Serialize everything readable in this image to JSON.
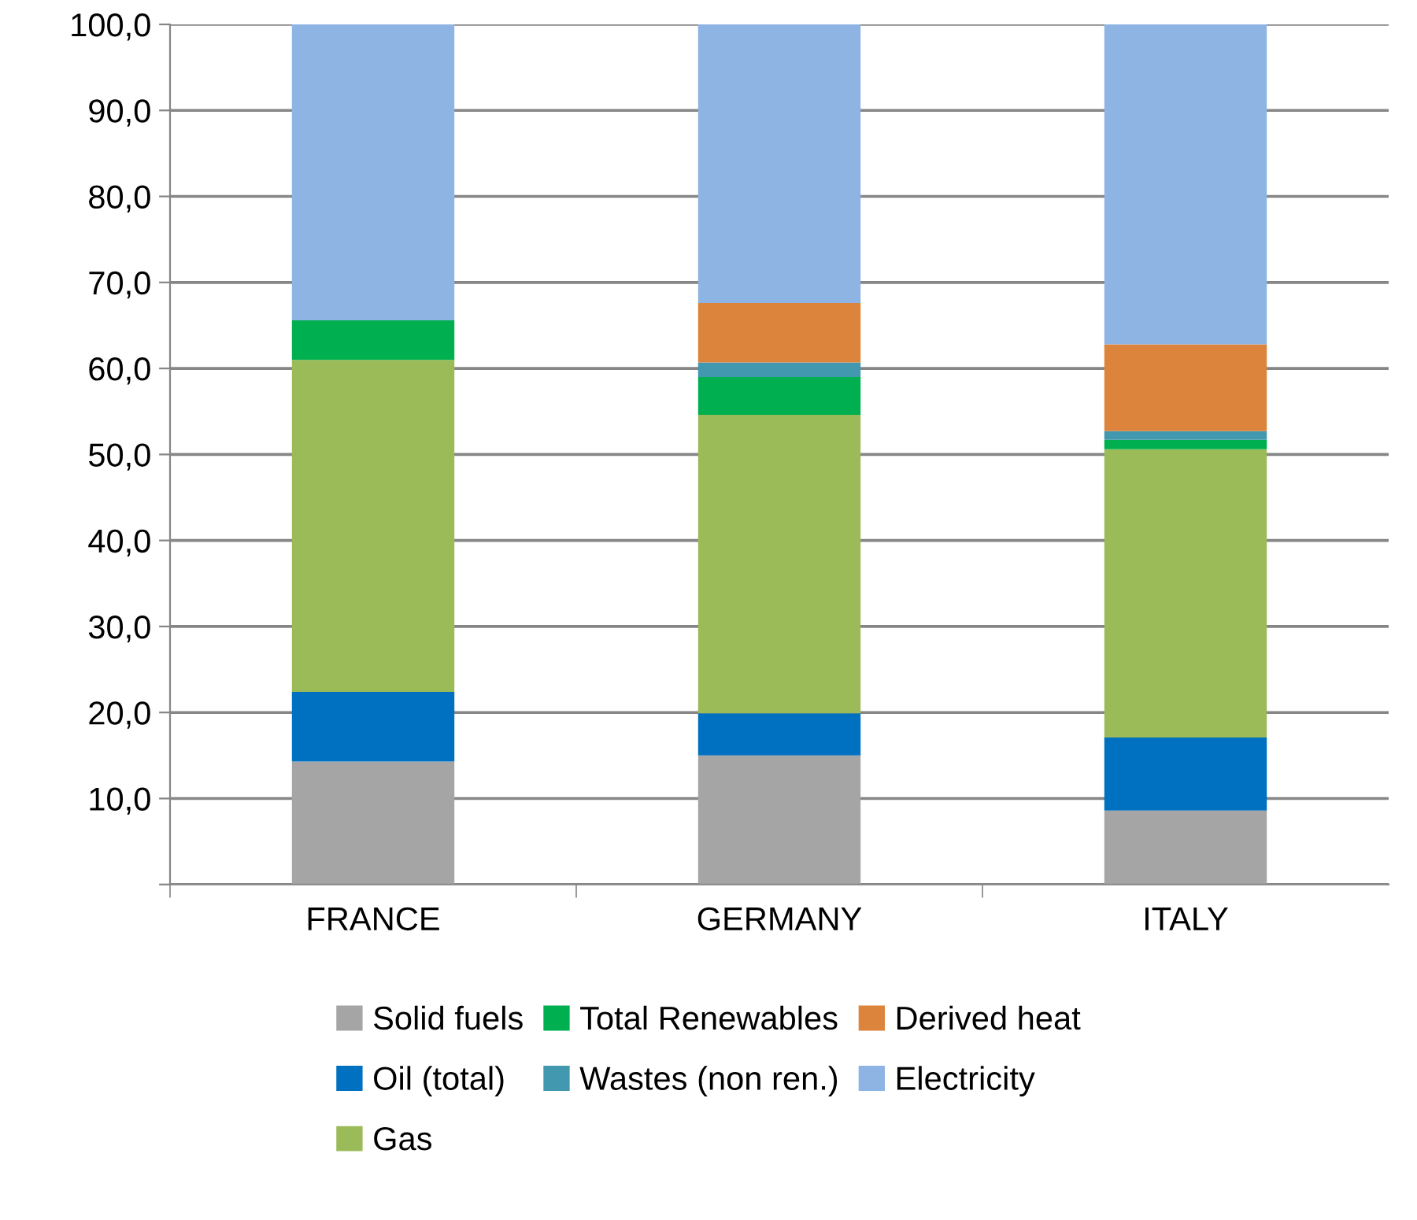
{
  "chart_data": {
    "type": "bar",
    "stacked": true,
    "categories": [
      "FRANCE",
      "GERMANY",
      "ITALY"
    ],
    "series": [
      {
        "name": "Solid fuels",
        "color": "#a5a5a5",
        "values": [
          14.3,
          15.0,
          8.6
        ]
      },
      {
        "name": "Oil (total)",
        "color": "#0070c0",
        "values": [
          8.1,
          4.9,
          8.5
        ]
      },
      {
        "name": "Gas",
        "color": "#9bbb59",
        "values": [
          38.6,
          34.7,
          33.5
        ]
      },
      {
        "name": "Total Renewables",
        "color": "#00b050",
        "values": [
          4.6,
          4.4,
          1.1
        ]
      },
      {
        "name": "Wastes (non ren.)",
        "color": "#4198af",
        "values": [
          0,
          1.7,
          1.0
        ]
      },
      {
        "name": "Derived heat",
        "color": "#dd843c",
        "values": [
          0,
          6.9,
          10.1
        ]
      },
      {
        "name": "Electricity",
        "color": "#8eb4e3",
        "values": [
          34.4,
          32.4,
          37.2
        ]
      }
    ],
    "ylim": [
      0,
      100
    ],
    "yticks": [
      {
        "value": 0,
        "label": null
      },
      {
        "value": 10,
        "label": "10,0"
      },
      {
        "value": 20,
        "label": "20,0"
      },
      {
        "value": 30,
        "label": "30,0"
      },
      {
        "value": 40,
        "label": "40,0"
      },
      {
        "value": 50,
        "label": "50,0"
      },
      {
        "value": 60,
        "label": "60,0"
      },
      {
        "value": 70,
        "label": "70,0"
      },
      {
        "value": 80,
        "label": "80,0"
      },
      {
        "value": 90,
        "label": "90,0"
      },
      {
        "value": 100,
        "label": "100,0"
      }
    ],
    "grid": "y",
    "legend": "bottom"
  }
}
